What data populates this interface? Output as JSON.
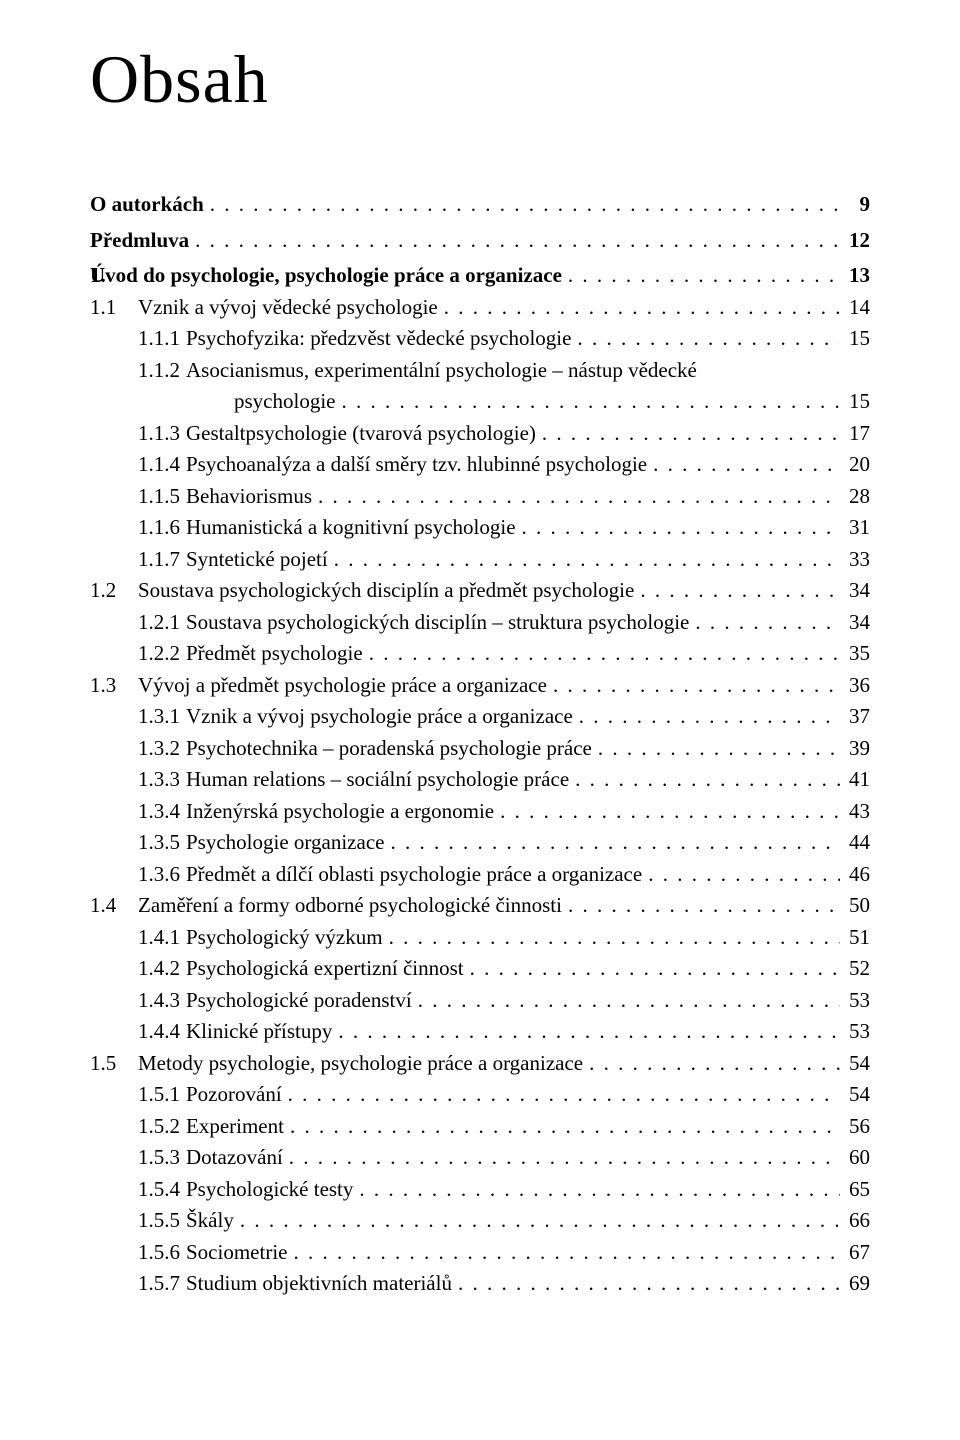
{
  "title": "Obsah",
  "entries": [
    {
      "num": "",
      "label": "O autorkách",
      "page": "9",
      "level": 0,
      "bold": true
    },
    {
      "num": "",
      "label": "Předmluva",
      "page": "12",
      "level": 0,
      "bold": true
    },
    {
      "num": "1.",
      "label": "Úvod do psychologie, psychologie práce a organizace",
      "page": "13",
      "level": 0,
      "bold": true
    },
    {
      "num": "1.1",
      "label": "Vznik a vývoj vědecké psychologie",
      "page": "14",
      "level": 1
    },
    {
      "num": "1.1.1",
      "label": "Psychofyzika: předzvěst vědecké psychologie",
      "page": "15",
      "level": 2
    },
    {
      "num": "1.1.2",
      "label": "Asocianismus, experimentální psychologie – nástup vědecké",
      "page": "",
      "level": 2,
      "noDots": true
    },
    {
      "num": "",
      "label": "psychologie",
      "page": "15",
      "level": -1
    },
    {
      "num": "1.1.3",
      "label": "Gestaltpsychologie (tvarová psychologie)",
      "page": "17",
      "level": 2
    },
    {
      "num": "1.1.4",
      "label": "Psychoanalýza a další směry tzv. hlubinné psychologie",
      "page": "20",
      "level": 2
    },
    {
      "num": "1.1.5",
      "label": "Behaviorismus",
      "page": "28",
      "level": 2
    },
    {
      "num": "1.1.6",
      "label": "Humanistická a kognitivní psychologie",
      "page": "31",
      "level": 2
    },
    {
      "num": "1.1.7",
      "label": "Syntetické pojetí",
      "page": "33",
      "level": 2
    },
    {
      "num": "1.2",
      "label": "Soustava psychologických disciplín a předmět psychologie",
      "page": "34",
      "level": 1
    },
    {
      "num": "1.2.1",
      "label": "Soustava psychologických disciplín – struktura psychologie",
      "page": "34",
      "level": 2
    },
    {
      "num": "1.2.2",
      "label": "Předmět psychologie",
      "page": "35",
      "level": 2
    },
    {
      "num": "1.3",
      "label": "Vývoj a předmět psychologie práce a organizace",
      "page": "36",
      "level": 1
    },
    {
      "num": "1.3.1",
      "label": "Vznik a vývoj psychologie práce a organizace",
      "page": "37",
      "level": 2
    },
    {
      "num": "1.3.2",
      "label": "Psychotechnika – poradenská psychologie práce",
      "page": "39",
      "level": 2
    },
    {
      "num": "1.3.3",
      "label": "Human relations – sociální psychologie práce",
      "page": "41",
      "level": 2
    },
    {
      "num": "1.3.4",
      "label": "Inženýrská psychologie a ergonomie",
      "page": "43",
      "level": 2
    },
    {
      "num": "1.3.5",
      "label": "Psychologie organizace",
      "page": "44",
      "level": 2
    },
    {
      "num": "1.3.6",
      "label": "Předmět a dílčí oblasti psychologie práce a organizace",
      "page": "46",
      "level": 2
    },
    {
      "num": "1.4",
      "label": "Zaměření a formy odborné psychologické činnosti",
      "page": "50",
      "level": 1
    },
    {
      "num": "1.4.1",
      "label": "Psychologický výzkum",
      "page": "51",
      "level": 2
    },
    {
      "num": "1.4.2",
      "label": "Psychologická expertizní činnost",
      "page": "52",
      "level": 2
    },
    {
      "num": "1.4.3",
      "label": "Psychologické poradenství",
      "page": "53",
      "level": 2
    },
    {
      "num": "1.4.4",
      "label": "Klinické přístupy",
      "page": "53",
      "level": 2
    },
    {
      "num": "1.5",
      "label": "Metody psychologie, psychologie práce a organizace",
      "page": "54",
      "level": 1
    },
    {
      "num": "1.5.1",
      "label": "Pozorování",
      "page": "54",
      "level": 2
    },
    {
      "num": "1.5.2",
      "label": "Experiment",
      "page": "56",
      "level": 2
    },
    {
      "num": "1.5.3",
      "label": "Dotazování",
      "page": "60",
      "level": 2
    },
    {
      "num": "1.5.4",
      "label": "Psychologické testy",
      "page": "65",
      "level": 2
    },
    {
      "num": "1.5.5",
      "label": "Škály",
      "page": "66",
      "level": 2
    },
    {
      "num": "1.5.6",
      "label": "Sociometrie",
      "page": "67",
      "level": 2
    },
    {
      "num": "1.5.7",
      "label": "Studium objektivních materiálů",
      "page": "69",
      "level": 2
    }
  ]
}
